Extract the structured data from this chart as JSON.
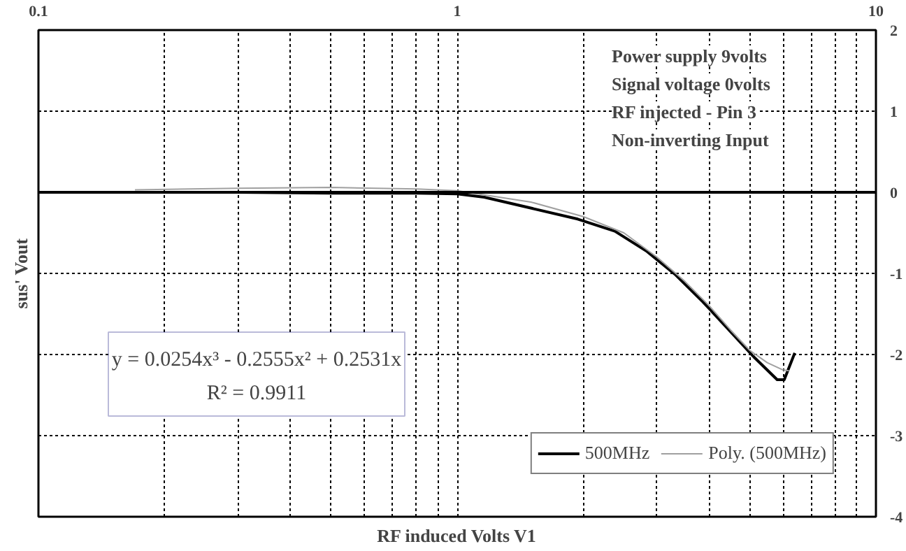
{
  "chart_data": {
    "type": "line",
    "xlabel": "RF induced Volts V1",
    "ylabel": "sus' Vout",
    "log": "x",
    "xlim": [
      0.1,
      10
    ],
    "ylim": [
      -4,
      2
    ],
    "xticks": [
      0.1,
      {
        "value": 0.2,
        "label": null
      },
      {
        "value": 0.3,
        "label": null
      },
      {
        "value": 0.4,
        "label": null
      },
      {
        "value": 0.5,
        "label": null
      },
      {
        "value": 0.6,
        "label": null
      },
      {
        "value": 0.7,
        "label": null
      },
      {
        "value": 0.8,
        "label": null
      },
      {
        "value": 0.9,
        "label": null
      },
      1,
      {
        "value": 2,
        "label": null
      },
      {
        "value": 3,
        "label": null
      },
      {
        "value": 4,
        "label": null
      },
      {
        "value": 5,
        "label": null
      },
      {
        "value": 6,
        "label": null
      },
      {
        "value": 7,
        "label": null
      },
      {
        "value": 8,
        "label": null
      },
      {
        "value": 9,
        "label": null
      },
      10
    ],
    "yticks": [
      -4,
      -3,
      -2,
      -1,
      0,
      1,
      2
    ],
    "grid": true,
    "legend": "bottom right",
    "marker": "none",
    "line_style": "solid",
    "ref_lines": [
      {
        "axis": "y",
        "value": 0,
        "color": "#000000"
      }
    ],
    "annotations": [
      "Power supply  9volts",
      "Signal voltage 0volts",
      "RF injected - Pin 3",
      "Non-inverting Input",
      "y = 0.0254x³ - 0.2555x² + 0.2531x",
      "R² = 0.9911"
    ],
    "series": [
      {
        "name": "500MHz",
        "color": "#000000",
        "x": [
          0.1,
          0.3,
          0.5,
          0.8,
          1,
          1.16,
          1.94,
          2.38,
          2.84,
          3.31,
          3.86,
          4.5,
          5.11,
          5.81,
          6.04,
          6.4
        ],
        "values": [
          0,
          0,
          -0.01,
          -0.01,
          -0.02,
          -0.06,
          -0.33,
          -0.48,
          -0.73,
          -1.01,
          -1.35,
          -1.72,
          -2.03,
          -2.31,
          -2.31,
          -1.98
        ]
      },
      {
        "name": "Poly. (500MHz)",
        "color": "#a0a0a0",
        "x": [
          0.17,
          0.3,
          0.5,
          0.8,
          1,
          1.5,
          2,
          2.5,
          3,
          3.5,
          4,
          4.5,
          5,
          5.5,
          6,
          6.2
        ],
        "values": [
          0.03,
          0.05,
          0.06,
          0.04,
          0.02,
          -0.12,
          -0.3,
          -0.5,
          -0.8,
          -1.1,
          -1.4,
          -1.7,
          -1.95,
          -2.1,
          -2.19,
          -2.2
        ]
      }
    ]
  }
}
